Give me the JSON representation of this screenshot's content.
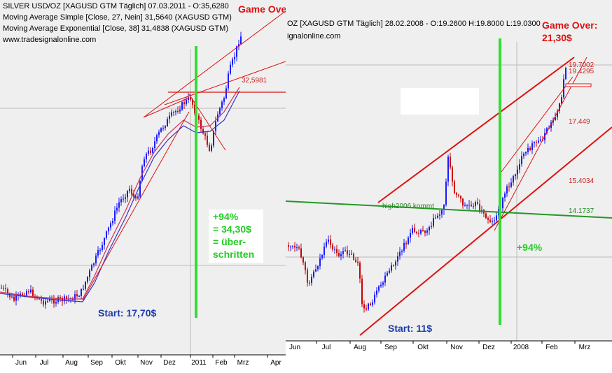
{
  "colors": {
    "up": "#1a1aff",
    "down": "#cc0000",
    "line_red": "#dd1111",
    "green_bar": "#33dd33",
    "green_line": "#229922",
    "sma": "#cc3355",
    "ema": "#3333cc"
  },
  "left": {
    "header_line1": "SILVER USD/OZ [XAGUSD GTM  Täglich] 07.03.2011 - O:35,6280",
    "header_line2": "Moving Average Simple [Close, 27, Nein] 31,5640 (XAGUSD GTM)",
    "header_line3": "Moving Average Exponential [Close, 38] 31,4838 (XAGUSD GTM)",
    "header_line4": "www.tradesignalonline.com",
    "game_over": "Game Over?",
    "gain_text": [
      "+94%",
      "= 34,30$",
      "= über-",
      "schritten"
    ],
    "start_text": "Start: 17,70$",
    "level_label": "32,5981"
  },
  "right": {
    "header_line1": "OZ [XAGUSD GTM  Täglich] 28.02.2008 - O:19.2600 H:19.8000 L:19.0300",
    "header_line2": "ignalonline.com",
    "game_over_1": "Game Over:",
    "game_over_2": "21,30$",
    "gain_text": "+94%",
    "start_text": "Start: 11$",
    "high_label": "high2006 kommt",
    "levels": [
      "19.7002",
      "19.4295",
      "17.449",
      "15.4034",
      "14.1737"
    ]
  },
  "chart_data": [
    {
      "type": "line",
      "title": "SILVER USD/OZ [XAGUSD GTM Täglich] 07.03.2011",
      "x": [
        "Jun",
        "Jul",
        "Aug",
        "Sep",
        "Okt",
        "Nov",
        "Dez",
        "2011",
        "Feb",
        "Mrz",
        "Apr"
      ],
      "series": [
        {
          "name": "SILVER USD/OZ",
          "values": [
            17.9,
            18.0,
            17.8,
            20.5,
            23.3,
            27.8,
            30.0,
            28.0,
            31.0,
            35.6,
            null
          ]
        },
        {
          "name": "Moving Average Simple [Close, 27, Nein]",
          "values": [
            17.7,
            18.0,
            18.1,
            19.0,
            21.8,
            25.5,
            28.5,
            29.0,
            29.3,
            31.56,
            null
          ]
        },
        {
          "name": "Moving Average Exponential [Close, 38]",
          "values": [
            17.6,
            17.9,
            18.0,
            18.8,
            21.3,
            25.0,
            28.0,
            28.8,
            29.2,
            31.48,
            null
          ]
        }
      ],
      "levels": [
        32.5981
      ],
      "annotations": [
        "Game Over?",
        "+94% = 34,30$ = über- schritten",
        "Start: 17,70$"
      ]
    },
    {
      "type": "line",
      "title": "XAGUSD GTM Täglich 28.02.2008",
      "x": [
        "Jun",
        "Jul",
        "Aug",
        "Sep",
        "Okt",
        "Nov",
        "Dez",
        "2008",
        "Feb",
        "Mrz"
      ],
      "series": [
        {
          "name": "XAGUSD",
          "values": [
            12.7,
            12.9,
            11.1,
            12.5,
            13.8,
            14.8,
            14.0,
            15.8,
            17.8,
            19.7
          ]
        }
      ],
      "levels": [
        19.7002,
        19.4295,
        17.449,
        15.4034,
        14.1737
      ],
      "annotations": [
        "Game Over: 21,30$",
        "+94%",
        "Start: 11$",
        "high2006 kommt"
      ]
    }
  ]
}
